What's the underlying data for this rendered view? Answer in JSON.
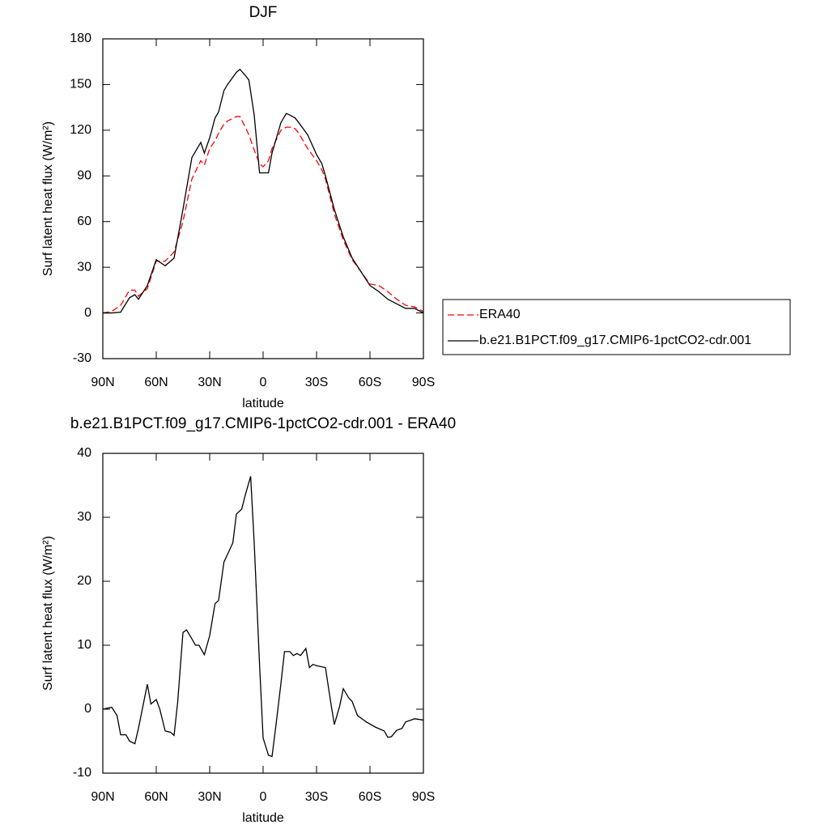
{
  "chart_data": [
    {
      "type": "line",
      "title": "DJF",
      "xlabel": "latitude",
      "ylabel": "Surf latent heat flux (W/m²)",
      "x": [
        90,
        85,
        80,
        75,
        72,
        70,
        65,
        60,
        55,
        50,
        45,
        40,
        35,
        33,
        30,
        27,
        25,
        22,
        20,
        15,
        13,
        10,
        8,
        5,
        2,
        0,
        -3,
        -5,
        -10,
        -13,
        -15,
        -18,
        -20,
        -25,
        -30,
        -33,
        -35,
        -40,
        -45,
        -50,
        -55,
        -60,
        -65,
        -70,
        -75,
        -80,
        -85,
        -90
      ],
      "series": [
        {
          "name": "ERA40",
          "color": "#ff0000",
          "dash": true,
          "values": [
            0,
            1,
            5,
            15,
            15,
            11,
            16,
            34,
            34,
            40,
            60,
            88,
            100,
            97,
            108,
            113,
            118,
            124,
            126,
            129,
            129,
            122,
            117,
            107,
            98,
            96,
            100,
            108,
            120,
            122,
            122,
            121,
            118,
            108,
            100,
            94,
            88,
            65,
            48,
            35,
            27,
            19,
            18,
            14,
            9,
            5,
            4,
            1
          ]
        },
        {
          "name": "b.e21.B1PCT.f09_g17.CMIP6-1pctCO2-cdr.001",
          "color": "#000000",
          "dash": false,
          "values": [
            0,
            0,
            0.5,
            10,
            12,
            9,
            18,
            35,
            31,
            36,
            68,
            102,
            112,
            105,
            115,
            128,
            132,
            146,
            150,
            158,
            160,
            156,
            153,
            130,
            92,
            92,
            92,
            105,
            125,
            131,
            130,
            128,
            125,
            117,
            104,
            98,
            90,
            68,
            50,
            36,
            27,
            18,
            14,
            9,
            6,
            3,
            3,
            0
          ]
        }
      ],
      "xlim": [
        90,
        -90
      ],
      "xticks": [
        {
          "value": 90,
          "label": "90N"
        },
        {
          "value": 60,
          "label": "60N"
        },
        {
          "value": 30,
          "label": "30N"
        },
        0,
        {
          "value": -30,
          "label": "30S"
        },
        {
          "value": -60,
          "label": "60S"
        },
        {
          "value": -90,
          "label": "90S"
        }
      ],
      "ylim": [
        -30,
        180
      ],
      "yticks": [
        -30,
        0,
        30,
        60,
        90,
        120,
        150,
        180
      ],
      "legend": "right"
    },
    {
      "type": "line",
      "title": "b.e21.B1PCT.f09_g17.CMIP6-1pctCO2-cdr.001 - ERA40",
      "xlabel": "latitude",
      "ylabel": "Surf latent heat flux (W/m²)",
      "x": [
        90,
        85,
        82,
        80,
        77,
        75,
        72,
        70,
        65,
        63,
        60,
        58,
        55,
        52,
        50,
        48,
        45,
        43,
        40,
        38,
        36,
        33,
        30,
        27,
        25,
        22,
        17,
        15,
        12,
        10,
        7,
        5,
        2,
        0,
        -3,
        -5,
        -7,
        -10,
        -12,
        -15,
        -17,
        -19,
        -21,
        -24,
        -26,
        -28,
        -30,
        -35,
        -38,
        -40,
        -43,
        -45,
        -48,
        -50,
        -53,
        -58,
        -63,
        -68,
        -70,
        -72,
        -75,
        -78,
        -80,
        -85,
        -90
      ],
      "series": [
        {
          "color": "#000000",
          "dash": false,
          "values": [
            0,
            0.3,
            -1,
            -4,
            -4,
            -5,
            -5.4,
            -3,
            3.9,
            0.8,
            1.5,
            0,
            -3.4,
            -3.6,
            -4.1,
            1,
            12,
            12.4,
            11,
            10,
            10,
            8.5,
            11.5,
            16.5,
            17,
            23,
            26,
            30.5,
            31.3,
            33.5,
            36.4,
            26,
            7,
            -4.5,
            -7.2,
            -7.4,
            -3,
            4,
            9,
            9,
            8.4,
            8.7,
            8.4,
            9.5,
            6.5,
            7,
            6.8,
            6.5,
            1,
            -2.4,
            0.5,
            3.2,
            1.8,
            1.2,
            -1,
            -2,
            -2.8,
            -3.4,
            -4.4,
            -4.3,
            -3.3,
            -3,
            -2,
            -1.5,
            -1.7
          ]
        }
      ],
      "xlim": [
        90,
        -90
      ],
      "xticks": [
        {
          "value": 90,
          "label": "90N"
        },
        {
          "value": 60,
          "label": "60N"
        },
        {
          "value": 30,
          "label": "30N"
        },
        0,
        {
          "value": -30,
          "label": "30S"
        },
        {
          "value": -60,
          "label": "60S"
        },
        {
          "value": -90,
          "label": "90S"
        }
      ],
      "ylim": [
        -10,
        40
      ],
      "yticks": [
        -10,
        0,
        10,
        20,
        30,
        40
      ]
    }
  ]
}
